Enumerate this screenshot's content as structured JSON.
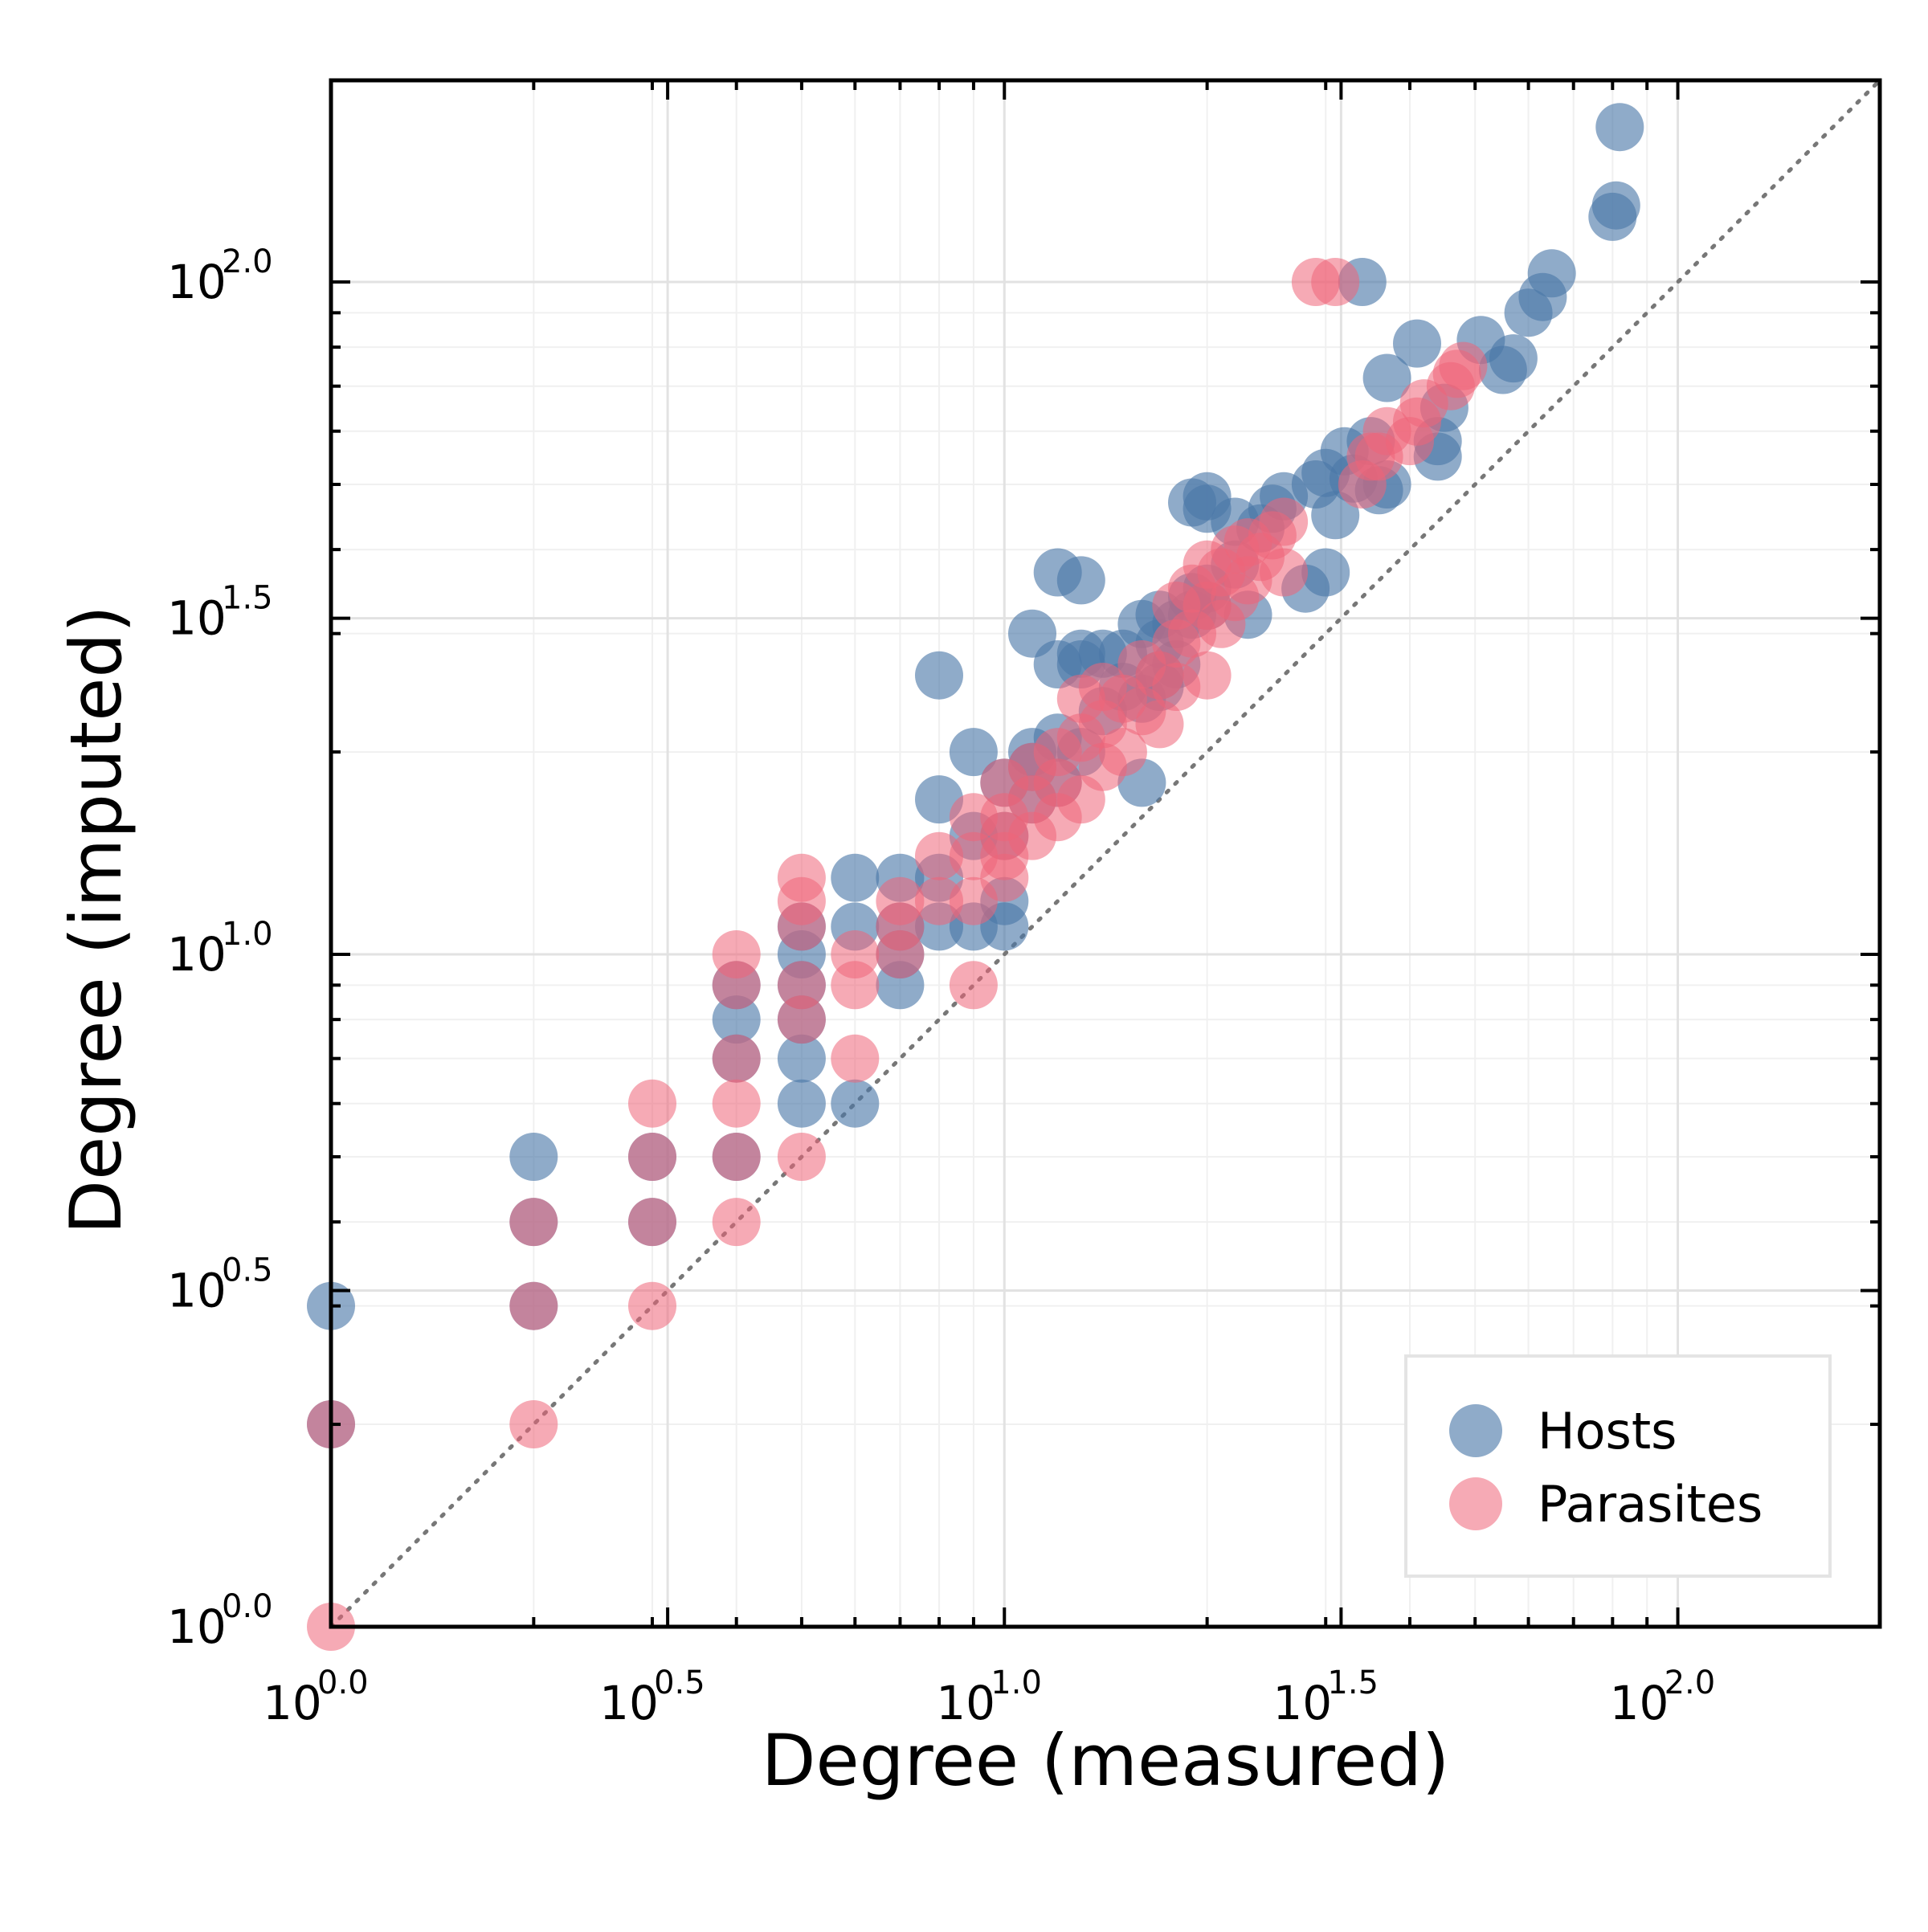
{
  "chart_data": {
    "type": "scatter",
    "xlabel": "Degree (measured)",
    "ylabel": "Degree (imputed)",
    "x_scale": "log10",
    "y_scale": "log10",
    "xlim": [
      1,
      199.5
    ],
    "ylim": [
      1,
      199.5
    ],
    "x_ticks": [
      {
        "base": "10",
        "exp": "0.0",
        "value": 1
      },
      {
        "base": "10",
        "exp": "0.5",
        "value": 3.162
      },
      {
        "base": "10",
        "exp": "1.0",
        "value": 10
      },
      {
        "base": "10",
        "exp": "1.5",
        "value": 31.62
      },
      {
        "base": "10",
        "exp": "2.0",
        "value": 100
      }
    ],
    "y_ticks": [
      {
        "base": "10",
        "exp": "0.0",
        "value": 1
      },
      {
        "base": "10",
        "exp": "0.5",
        "value": 3.162
      },
      {
        "base": "10",
        "exp": "1.0",
        "value": 10
      },
      {
        "base": "10",
        "exp": "1.5",
        "value": 31.62
      },
      {
        "base": "10",
        "exp": "2.0",
        "value": 100
      }
    ],
    "grid": true,
    "reference_line": "y = x (dotted)",
    "legend_position": "bottom-right",
    "series": [
      {
        "name": "Hosts",
        "color": "#4b77a8",
        "points": [
          [
            1,
            3
          ],
          [
            1,
            2
          ],
          [
            2,
            5
          ],
          [
            2,
            4
          ],
          [
            2,
            3
          ],
          [
            3,
            5
          ],
          [
            3,
            4
          ],
          [
            4,
            5
          ],
          [
            4,
            7
          ],
          [
            4,
            8
          ],
          [
            4,
            9
          ],
          [
            5,
            6
          ],
          [
            5,
            7
          ],
          [
            5,
            8
          ],
          [
            5,
            9
          ],
          [
            5,
            10
          ],
          [
            5,
            11
          ],
          [
            6,
            6
          ],
          [
            6,
            11
          ],
          [
            6,
            13
          ],
          [
            7,
            9
          ],
          [
            7,
            10
          ],
          [
            7,
            11
          ],
          [
            7,
            13
          ],
          [
            8,
            11
          ],
          [
            8,
            13
          ],
          [
            8,
            17
          ],
          [
            8,
            26
          ],
          [
            9,
            11
          ],
          [
            9,
            15
          ],
          [
            9,
            20
          ],
          [
            10,
            11
          ],
          [
            10,
            12
          ],
          [
            10,
            15
          ],
          [
            10,
            18
          ],
          [
            11,
            17
          ],
          [
            11,
            19
          ],
          [
            11,
            20
          ],
          [
            11,
            30
          ],
          [
            12,
            18
          ],
          [
            12,
            21
          ],
          [
            12,
            27
          ],
          [
            12,
            37
          ],
          [
            13,
            20
          ],
          [
            13,
            27
          ],
          [
            13,
            28
          ],
          [
            13,
            36
          ],
          [
            14,
            23
          ],
          [
            14,
            28
          ],
          [
            15,
            25
          ],
          [
            15,
            28
          ],
          [
            16,
            18
          ],
          [
            16,
            24
          ],
          [
            16,
            31
          ],
          [
            17,
            25
          ],
          [
            17,
            26
          ],
          [
            17,
            29
          ],
          [
            17,
            32
          ],
          [
            18,
            27
          ],
          [
            18,
            31
          ],
          [
            19,
            32
          ],
          [
            19,
            34
          ],
          [
            19,
            47
          ],
          [
            20,
            33
          ],
          [
            20,
            35
          ],
          [
            20,
            46
          ],
          [
            20,
            48
          ],
          [
            22,
            38
          ],
          [
            22,
            44
          ],
          [
            23,
            32
          ],
          [
            24,
            43
          ],
          [
            25,
            46
          ],
          [
            26,
            48
          ],
          [
            28,
            35
          ],
          [
            29,
            50
          ],
          [
            30,
            37
          ],
          [
            30,
            52
          ],
          [
            31,
            45
          ],
          [
            32,
            56
          ],
          [
            33,
            51
          ],
          [
            34,
            100
          ],
          [
            35,
            58
          ],
          [
            36,
            49
          ],
          [
            37,
            50
          ],
          [
            37,
            72
          ],
          [
            41,
            81
          ],
          [
            44,
            55
          ],
          [
            44,
            58
          ],
          [
            45,
            65
          ],
          [
            51,
            82
          ],
          [
            55,
            74
          ],
          [
            57,
            77
          ],
          [
            60,
            90
          ],
          [
            63,
            95
          ],
          [
            65,
            103
          ],
          [
            80,
            125
          ],
          [
            81,
            130
          ],
          [
            82,
            170
          ]
        ]
      },
      {
        "name": "Parasites",
        "color": "#ef6478",
        "points": [
          [
            1,
            1
          ],
          [
            1,
            2
          ],
          [
            2,
            2
          ],
          [
            2,
            3
          ],
          [
            2,
            4
          ],
          [
            3,
            3
          ],
          [
            3,
            4
          ],
          [
            3,
            5
          ],
          [
            3,
            6
          ],
          [
            4,
            4
          ],
          [
            4,
            5
          ],
          [
            4,
            6
          ],
          [
            4,
            7
          ],
          [
            4,
            9
          ],
          [
            4,
            10
          ],
          [
            5,
            5
          ],
          [
            5,
            8
          ],
          [
            5,
            9
          ],
          [
            5,
            11
          ],
          [
            5,
            12
          ],
          [
            5,
            13
          ],
          [
            6,
            7
          ],
          [
            6,
            9
          ],
          [
            6,
            10
          ],
          [
            7,
            10
          ],
          [
            7,
            11
          ],
          [
            7,
            12
          ],
          [
            8,
            12
          ],
          [
            8,
            14
          ],
          [
            9,
            9
          ],
          [
            9,
            12
          ],
          [
            9,
            14
          ],
          [
            9,
            16
          ],
          [
            10,
            13
          ],
          [
            10,
            14
          ],
          [
            10,
            15
          ],
          [
            10,
            16
          ],
          [
            10,
            18
          ],
          [
            11,
            15
          ],
          [
            11,
            17
          ],
          [
            11,
            19
          ],
          [
            12,
            16
          ],
          [
            12,
            18
          ],
          [
            12,
            20
          ],
          [
            13,
            17
          ],
          [
            13,
            21
          ],
          [
            13,
            24
          ],
          [
            14,
            19
          ],
          [
            14,
            22
          ],
          [
            14,
            25
          ],
          [
            15,
            20
          ],
          [
            15,
            24
          ],
          [
            16,
            23
          ],
          [
            16,
            27
          ],
          [
            17,
            22
          ],
          [
            17,
            26
          ],
          [
            18,
            25
          ],
          [
            18,
            29
          ],
          [
            18,
            33
          ],
          [
            19,
            30
          ],
          [
            19,
            35
          ],
          [
            20,
            26
          ],
          [
            20,
            33
          ],
          [
            20,
            38
          ],
          [
            21,
            31
          ],
          [
            21,
            37
          ],
          [
            22,
            34
          ],
          [
            22,
            40
          ],
          [
            23,
            36
          ],
          [
            23,
            41
          ],
          [
            24,
            39
          ],
          [
            25,
            42
          ],
          [
            26,
            37
          ],
          [
            26,
            44
          ],
          [
            29,
            100
          ],
          [
            31,
            100
          ],
          [
            34,
            50
          ],
          [
            35,
            55
          ],
          [
            36,
            55
          ],
          [
            37,
            60
          ],
          [
            40,
            58
          ],
          [
            41,
            62
          ],
          [
            42,
            66
          ],
          [
            46,
            70
          ],
          [
            47,
            73
          ],
          [
            48,
            75
          ]
        ]
      }
    ]
  }
}
